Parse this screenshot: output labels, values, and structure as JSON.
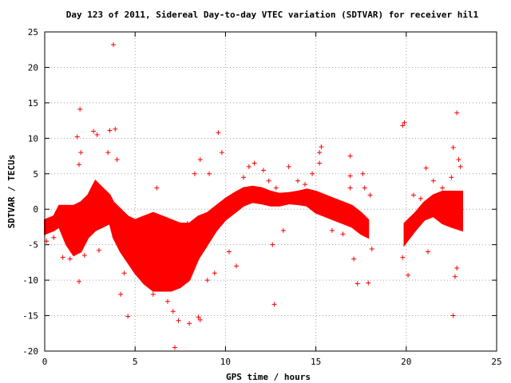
{
  "chart_data": {
    "type": "scatter",
    "title": "Day 123 of 2011, Sidereal Day-to-day VTEC variation (SDTVAR) for receiver hil1",
    "xlabel": "GPS time / hours",
    "ylabel": "SDTVAR / TECUs",
    "xlim": [
      0,
      25
    ],
    "ylim": [
      -20,
      25
    ],
    "x_ticks": [
      0,
      5,
      10,
      15,
      20,
      25
    ],
    "y_ticks": [
      -20,
      -15,
      -10,
      -5,
      0,
      5,
      10,
      15,
      20,
      25
    ],
    "x_tick_labels": [
      "0",
      "5",
      "10",
      "15",
      "20",
      "25"
    ],
    "y_tick_labels": [
      "-20",
      "-15",
      "-10",
      "-5",
      "0",
      "5",
      "10",
      "15",
      "20",
      "25"
    ],
    "grid": true,
    "marker": "+",
    "color": "#ff0000",
    "band": [
      [
        0.0,
        -3.5,
        -1.5
      ],
      [
        0.5,
        -3.0,
        -1.0
      ],
      [
        0.8,
        -2.5,
        0.5
      ],
      [
        1.2,
        -5.0,
        0.5
      ],
      [
        1.6,
        -6.5,
        0.5
      ],
      [
        2.0,
        -6.0,
        1.0
      ],
      [
        2.4,
        -4.0,
        2.0
      ],
      [
        2.8,
        -3.0,
        4.0
      ],
      [
        3.2,
        -2.5,
        3.0
      ],
      [
        3.6,
        -2.0,
        2.0
      ],
      [
        3.8,
        -4.0,
        1.0
      ],
      [
        4.2,
        -6.0,
        0.0
      ],
      [
        4.6,
        -7.5,
        -1.0
      ],
      [
        5.0,
        -9.0,
        -1.5
      ],
      [
        5.5,
        -10.5,
        -1.0
      ],
      [
        6.0,
        -11.5,
        -0.5
      ],
      [
        6.5,
        -11.5,
        -1.0
      ],
      [
        7.0,
        -11.5,
        -1.5
      ],
      [
        7.5,
        -11.0,
        -2.0
      ],
      [
        8.0,
        -10.0,
        -2.0
      ],
      [
        8.5,
        -7.0,
        -1.0
      ],
      [
        9.0,
        -5.0,
        -0.5
      ],
      [
        9.5,
        -3.0,
        0.5
      ],
      [
        10.0,
        -1.5,
        1.5
      ],
      [
        10.5,
        -0.5,
        2.3
      ],
      [
        11.0,
        0.5,
        3.0
      ],
      [
        11.5,
        1.0,
        3.2
      ],
      [
        12.0,
        0.8,
        3.0
      ],
      [
        12.5,
        0.5,
        2.5
      ],
      [
        13.0,
        0.5,
        2.2
      ],
      [
        13.5,
        0.8,
        2.3
      ],
      [
        14.0,
        0.7,
        2.5
      ],
      [
        14.5,
        0.5,
        2.8
      ],
      [
        15.0,
        -0.5,
        2.5
      ],
      [
        15.5,
        -1.0,
        2.0
      ],
      [
        16.0,
        -1.5,
        1.5
      ],
      [
        16.5,
        -2.0,
        1.0
      ],
      [
        17.0,
        -2.5,
        0.5
      ],
      [
        17.5,
        -3.5,
        -0.5
      ],
      [
        17.9,
        -4.0,
        -1.5
      ],
      [
        19.9,
        -5.0,
        -2.0
      ],
      [
        20.5,
        -3.0,
        -0.5
      ],
      [
        21.0,
        -1.5,
        1.0
      ],
      [
        21.5,
        -1.0,
        2.0
      ],
      [
        22.0,
        -2.0,
        2.5
      ],
      [
        22.5,
        -2.5,
        2.5
      ],
      [
        23.1,
        -3.0,
        2.5
      ]
    ],
    "points": [
      [
        3.8,
        23.2
      ],
      [
        1.95,
        14.1
      ],
      [
        2.7,
        11.0
      ],
      [
        2.9,
        10.5
      ],
      [
        3.6,
        11.1
      ],
      [
        3.9,
        11.3
      ],
      [
        1.9,
        6.3
      ],
      [
        2.0,
        8.0
      ],
      [
        1.8,
        10.2
      ],
      [
        3.5,
        8.0
      ],
      [
        4.0,
        7.0
      ],
      [
        1.9,
        -10.2
      ],
      [
        2.2,
        -6.5
      ],
      [
        3.0,
        -5.8
      ],
      [
        4.2,
        -12.0
      ],
      [
        4.6,
        -15.1
      ],
      [
        5.1,
        -9.0
      ],
      [
        5.5,
        -9.5
      ],
      [
        6.2,
        3.0
      ],
      [
        6.8,
        -13.0
      ],
      [
        7.1,
        -14.4
      ],
      [
        7.2,
        -19.5
      ],
      [
        7.4,
        -15.7
      ],
      [
        8.0,
        -16.1
      ],
      [
        8.5,
        -15.2
      ],
      [
        8.6,
        -15.6
      ],
      [
        7.9,
        -2.0
      ],
      [
        8.3,
        5.0
      ],
      [
        8.6,
        7.0
      ],
      [
        9.1,
        5.0
      ],
      [
        9.6,
        10.8
      ],
      [
        9.8,
        8.0
      ],
      [
        9.0,
        -10.0
      ],
      [
        9.4,
        -9.0
      ],
      [
        10.2,
        -6.0
      ],
      [
        10.6,
        -8.0
      ],
      [
        11.0,
        4.5
      ],
      [
        11.3,
        6.0
      ],
      [
        11.6,
        6.5
      ],
      [
        12.1,
        5.5
      ],
      [
        12.4,
        4.0
      ],
      [
        12.8,
        3.0
      ],
      [
        12.6,
        -5.0
      ],
      [
        12.7,
        -13.4
      ],
      [
        13.2,
        -3.0
      ],
      [
        13.5,
        6.0
      ],
      [
        14.0,
        4.0
      ],
      [
        14.4,
        3.5
      ],
      [
        14.8,
        5.0
      ],
      [
        15.2,
        6.5
      ],
      [
        15.3,
        8.8
      ],
      [
        15.2,
        8.0
      ],
      [
        15.9,
        -3.0
      ],
      [
        16.5,
        -3.5
      ],
      [
        16.9,
        3.0
      ],
      [
        16.9,
        4.7
      ],
      [
        16.9,
        7.5
      ],
      [
        17.1,
        -7.0
      ],
      [
        17.3,
        -10.5
      ],
      [
        17.6,
        5.0
      ],
      [
        17.7,
        3.0
      ],
      [
        17.9,
        -10.4
      ],
      [
        18.1,
        -5.6
      ],
      [
        18.0,
        2.0
      ],
      [
        19.8,
        11.8
      ],
      [
        19.9,
        12.2
      ],
      [
        19.8,
        -6.8
      ],
      [
        20.1,
        -9.3
      ],
      [
        20.0,
        -2.5
      ],
      [
        20.4,
        2.0
      ],
      [
        20.8,
        1.5
      ],
      [
        21.1,
        5.8
      ],
      [
        21.2,
        -6.0
      ],
      [
        21.5,
        4.0
      ],
      [
        22.0,
        3.0
      ],
      [
        22.5,
        4.5
      ],
      [
        22.6,
        8.7
      ],
      [
        22.8,
        13.6
      ],
      [
        22.9,
        7.0
      ],
      [
        23.0,
        6.0
      ],
      [
        22.7,
        -9.5
      ],
      [
        22.8,
        -8.3
      ],
      [
        22.6,
        -15.0
      ],
      [
        0.1,
        -4.5
      ],
      [
        0.5,
        -4.0
      ],
      [
        1.0,
        -6.8
      ],
      [
        1.4,
        -7.0
      ],
      [
        2.5,
        -2.0
      ],
      [
        4.4,
        -9.0
      ],
      [
        6.0,
        -12.0
      ]
    ]
  }
}
